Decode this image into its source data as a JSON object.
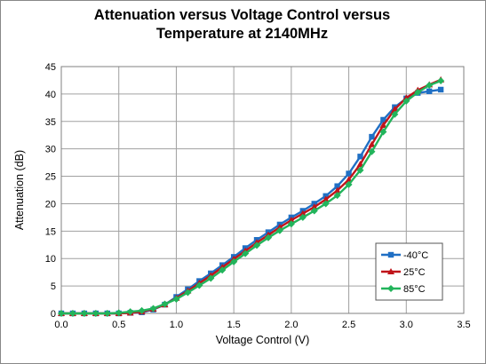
{
  "chart_data": {
    "type": "line",
    "title": [
      "Attenuation versus Voltage Control versus",
      "Temperature at 2140MHz"
    ],
    "xlabel": "Voltage Control (V)",
    "ylabel": "Attenuation (dB)",
    "xlim": [
      0,
      3.5
    ],
    "ylim": [
      0,
      45
    ],
    "x_ticks": [
      0.0,
      0.5,
      1.0,
      1.5,
      2.0,
      2.5,
      3.0,
      3.5
    ],
    "x_tick_labels": [
      "0.0",
      "0.5",
      "1.0",
      "1.5",
      "2.0",
      "2.5",
      "3.0",
      "3.5"
    ],
    "y_ticks": [
      0,
      5,
      10,
      15,
      20,
      25,
      30,
      35,
      40,
      45
    ],
    "y_tick_labels": [
      "0",
      "5",
      "10",
      "15",
      "20",
      "25",
      "30",
      "35",
      "40",
      "45"
    ],
    "grid": true,
    "legend_position": "bottom-right",
    "x": [
      0.0,
      0.1,
      0.2,
      0.3,
      0.4,
      0.5,
      0.6,
      0.7,
      0.8,
      0.9,
      1.0,
      1.1,
      1.2,
      1.3,
      1.4,
      1.5,
      1.6,
      1.7,
      1.8,
      1.9,
      2.0,
      2.1,
      2.2,
      2.3,
      2.4,
      2.5,
      2.6,
      2.7,
      2.8,
      2.9,
      3.0,
      3.1,
      3.2,
      3.3
    ],
    "series": [
      {
        "name": "-40°C",
        "color": "#1f6fc4",
        "marker": "square",
        "values": [
          0,
          0,
          0,
          0,
          0,
          0,
          0.1,
          0.2,
          0.7,
          1.6,
          3.0,
          4.4,
          5.9,
          7.3,
          8.8,
          10.3,
          11.9,
          13.4,
          14.8,
          16.2,
          17.5,
          18.7,
          20.0,
          21.4,
          23.2,
          25.5,
          28.6,
          32.2,
          35.3,
          37.6,
          39.2,
          40.2,
          40.5,
          40.8
        ]
      },
      {
        "name": "25°C",
        "color": "#c0141a",
        "marker": "triangle",
        "values": [
          0,
          0,
          0,
          0,
          0,
          0,
          0.1,
          0.3,
          0.8,
          1.6,
          2.8,
          4.1,
          5.5,
          6.9,
          8.4,
          9.9,
          11.4,
          12.9,
          14.3,
          15.7,
          17.0,
          18.2,
          19.4,
          20.8,
          22.4,
          24.4,
          27.2,
          30.8,
          34.3,
          37.2,
          39.3,
          40.7,
          41.7,
          42.6
        ]
      },
      {
        "name": "85°C",
        "color": "#22b45b",
        "marker": "diamond",
        "values": [
          0,
          0,
          0,
          0,
          0,
          0.1,
          0.3,
          0.5,
          0.9,
          1.7,
          2.6,
          3.8,
          5.1,
          6.4,
          7.9,
          9.4,
          10.9,
          12.4,
          13.8,
          15.1,
          16.3,
          17.5,
          18.7,
          20.0,
          21.5,
          23.5,
          26.1,
          29.5,
          33.1,
          36.3,
          38.7,
          40.3,
          41.6,
          42.4
        ]
      }
    ]
  }
}
